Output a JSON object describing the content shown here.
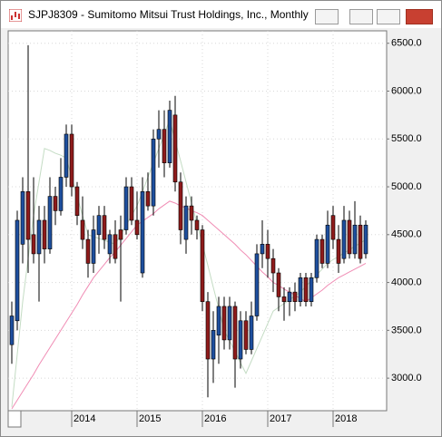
{
  "chart_data": {
    "type": "candlestick",
    "title": "SJPJ8309 - Sumitomo Mitsui Trust Holdings, Inc., Monthly",
    "categories": [
      null,
      null,
      null,
      null,
      null,
      null,
      null,
      null,
      null,
      null,
      null,
      "2014",
      null,
      null,
      null,
      null,
      null,
      null,
      null,
      null,
      null,
      null,
      null,
      "2015",
      null,
      null,
      null,
      null,
      null,
      null,
      null,
      null,
      null,
      null,
      null,
      "2016",
      null,
      null,
      null,
      null,
      null,
      null,
      null,
      null,
      null,
      null,
      null,
      "2017",
      null,
      null,
      null,
      null,
      null,
      null,
      null,
      null,
      null,
      null,
      null,
      "2018",
      null,
      null,
      null,
      null,
      null,
      null
    ],
    "open": [
      3350,
      3600,
      4400,
      4950,
      4500,
      4300,
      4650,
      4350,
      4900,
      4750,
      5100,
      5550,
      5000,
      4650,
      4450,
      4200,
      4500,
      4700,
      4300,
      4500,
      4550,
      4550,
      5000,
      4650,
      4100,
      4950,
      4800,
      5500,
      5600,
      5250,
      5750,
      5050,
      4450,
      4800,
      4650,
      4550,
      3800,
      3200,
      3450,
      3750,
      3400,
      3750,
      3200,
      3600,
      3300,
      3650,
      4300,
      4400,
      4250,
      4100,
      3850,
      3800,
      3900,
      3800,
      4050,
      3800,
      4050,
      4450,
      4200,
      4700,
      4450,
      4250,
      4650,
      4300,
      4600,
      4300
    ],
    "high": [
      3800,
      4750,
      5100,
      6480,
      5100,
      4800,
      4800,
      5100,
      5000,
      5300,
      5650,
      5650,
      5050,
      4900,
      4550,
      4700,
      4800,
      4800,
      4550,
      4650,
      4700,
      5100,
      5100,
      4950,
      5100,
      5150,
      5600,
      5800,
      5800,
      5900,
      5950,
      5150,
      4900,
      4900,
      4700,
      4600,
      3900,
      3700,
      3850,
      3850,
      3850,
      3800,
      3700,
      3700,
      3800,
      4400,
      4650,
      4550,
      4350,
      4150,
      3950,
      3950,
      4000,
      4100,
      4100,
      4100,
      4500,
      4500,
      4750,
      4800,
      4600,
      4800,
      4750,
      4850,
      4700,
      4650
    ],
    "low": [
      3150,
      3500,
      4200,
      4100,
      4200,
      3800,
      4200,
      4300,
      4600,
      4700,
      5000,
      4900,
      4600,
      4350,
      4050,
      4100,
      4300,
      4350,
      4200,
      4200,
      3800,
      4500,
      4600,
      4450,
      4050,
      4750,
      4700,
      5200,
      5100,
      5200,
      4950,
      4400,
      4300,
      4500,
      4450,
      3700,
      2800,
      2950,
      3150,
      3300,
      3300,
      2900,
      3100,
      3250,
      3250,
      3600,
      4150,
      4050,
      3900,
      3700,
      3600,
      3650,
      3700,
      3750,
      3750,
      3750,
      4000,
      4150,
      4150,
      4350,
      4100,
      4200,
      4250,
      4250,
      4200,
      4250
    ],
    "close": [
      3650,
      4650,
      4950,
      4450,
      4300,
      4650,
      4350,
      4900,
      4750,
      5100,
      5550,
      5000,
      4700,
      4450,
      4200,
      4550,
      4700,
      4450,
      4500,
      4250,
      4450,
      5000,
      4650,
      4500,
      4950,
      4800,
      5500,
      5600,
      5250,
      5800,
      5050,
      4550,
      4800,
      4650,
      4550,
      3800,
      3200,
      3500,
      3750,
      3400,
      3750,
      3200,
      3600,
      3300,
      3650,
      4300,
      4400,
      4250,
      4100,
      3850,
      3800,
      3900,
      3800,
      4050,
      3800,
      4050,
      4450,
      4200,
      4600,
      4450,
      4200,
      4650,
      4300,
      4600,
      4250,
      4600
    ],
    "up_color": "#1e4f9e",
    "down_color": "#8e1b1b",
    "series": [
      {
        "color": "#c4dcc4",
        "values": [
          2700,
          3250,
          3800,
          4250,
          4700,
          5050,
          5400,
          5380,
          5350,
          5330,
          5300,
          5100,
          4900,
          4700,
          4500,
          4480,
          4460,
          4440,
          4420,
          4400,
          4500,
          4600,
          4700,
          4800,
          4950,
          5100,
          5250,
          5400,
          5550,
          5700,
          5480,
          5270,
          5050,
          4830,
          4620,
          4400,
          4180,
          3950,
          3730,
          3500,
          3390,
          3280,
          3160,
          3050,
          3180,
          3310,
          3440,
          3570,
          3700,
          3740,
          3780,
          3820,
          3860,
          3900,
          3960,
          4020,
          4080,
          4140,
          4200,
          4240,
          4270,
          4310,
          4340,
          4380,
          4410,
          4450
        ]
      },
      {
        "color": "#f08cb4",
        "values": [
          2680,
          2770,
          2860,
          2950,
          3040,
          3140,
          3230,
          3320,
          3410,
          3500,
          3590,
          3680,
          3770,
          3870,
          3960,
          4050,
          4120,
          4190,
          4260,
          4320,
          4390,
          4460,
          4530,
          4600,
          4640,
          4680,
          4720,
          4770,
          4810,
          4850,
          4830,
          4800,
          4780,
          4750,
          4730,
          4700,
          4650,
          4600,
          4550,
          4500,
          4450,
          4400,
          4340,
          4290,
          4230,
          4170,
          4110,
          4060,
          4000,
          3970,
          3930,
          3900,
          3870,
          3830,
          3800,
          3840,
          3880,
          3920,
          3970,
          4010,
          4050,
          4080,
          4110,
          4140,
          4170,
          4200
        ]
      }
    ],
    "ylim": [
      2660,
      6630
    ],
    "yticks": [
      {
        "value": 3000,
        "label": "3000.0"
      },
      {
        "value": 3500,
        "label": "3500.0"
      },
      {
        "value": 4000,
        "label": "4000.0"
      },
      {
        "value": 4500,
        "label": "4500.0"
      },
      {
        "value": 5000,
        "label": "5000.0"
      },
      {
        "value": 5500,
        "label": "5500.0"
      },
      {
        "value": 6000,
        "label": "6000.0"
      },
      {
        "value": 6500,
        "label": "6500.0"
      }
    ],
    "grid": true
  }
}
